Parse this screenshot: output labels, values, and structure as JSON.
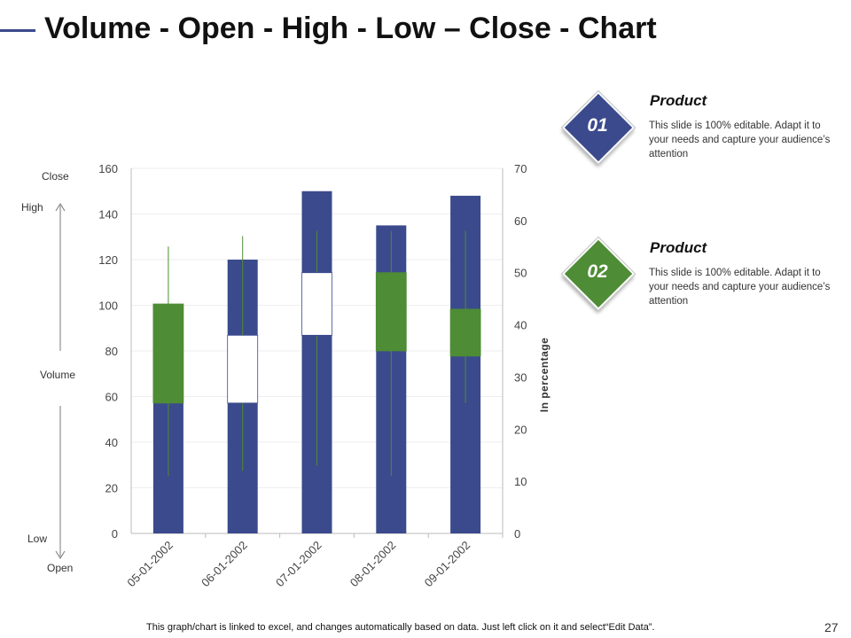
{
  "page": {
    "title": "Volume - Open - High - Low – Close - Chart",
    "footer": "This graph/chart is linked to excel, and changes automatically based on data. Just left click on it and select“Edit Data”.",
    "page_number": "27"
  },
  "colors": {
    "volume": "#3b4a8c",
    "up_body": "#ffffff",
    "down_body": "#4e8c35",
    "wick": "#4e8c35",
    "accent_blue": "#3b4a8c",
    "accent_green": "#4e8c35"
  },
  "side_labels": {
    "close": "Close",
    "high": "High",
    "volume": "Volume",
    "low": "Low",
    "open": "Open"
  },
  "products": [
    {
      "number": "01",
      "title": "Product",
      "description": "This slide is 100% editable. Adapt it to your needs and capture your audience’s attention",
      "color": "#3b4a8c"
    },
    {
      "number": "02",
      "title": "Product",
      "description": "This slide is 100% editable. Adapt it to your needs and capture your audience’s attention",
      "color": "#4e8c35"
    }
  ],
  "chart_data": {
    "type": "bar",
    "title": "Volume - Open - High - Low – Close - Chart",
    "categories": [
      "05-01-2002",
      "06-01-2002",
      "07-01-2002",
      "08-01-2002",
      "09-01-2002"
    ],
    "series": [
      {
        "name": "Volume",
        "axis": "left",
        "values": [
          100,
          120,
          150,
          135,
          148
        ]
      },
      {
        "name": "Open",
        "axis": "right",
        "values": [
          44,
          25,
          38,
          50,
          43
        ]
      },
      {
        "name": "High",
        "axis": "right",
        "values": [
          55,
          57,
          58,
          58,
          58
        ]
      },
      {
        "name": "Low",
        "axis": "right",
        "values": [
          11,
          12,
          13,
          11,
          25
        ]
      },
      {
        "name": "Close",
        "axis": "right",
        "values": [
          25,
          38,
          50,
          35,
          34
        ]
      }
    ],
    "ylim": [
      0,
      160
    ],
    "yticks": [
      0,
      20,
      40,
      60,
      80,
      100,
      120,
      140,
      160
    ],
    "y2lim": [
      0,
      70
    ],
    "y2ticks": [
      0,
      10,
      20,
      30,
      40,
      50,
      60,
      70
    ],
    "ylabel": "",
    "y2label": "In percentage",
    "xlabel": "",
    "grid": true
  }
}
